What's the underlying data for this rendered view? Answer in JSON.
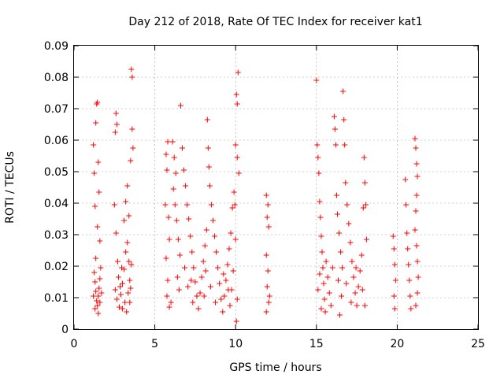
{
  "chart_data": {
    "type": "scatter",
    "title": "Day 212 of 2018, Rate Of TEC Index for receiver kat1",
    "xlabel": "GPS time / hours",
    "ylabel": "ROTI / TECUs",
    "xlim": [
      0,
      25
    ],
    "ylim": [
      0,
      0.09
    ],
    "xticks": [
      0,
      5,
      10,
      15,
      20,
      25
    ],
    "xtick_labels": [
      "0",
      "5",
      "10",
      "15",
      "20",
      "25"
    ],
    "yticks": [
      0,
      0.01,
      0.02,
      0.03,
      0.04,
      0.05,
      0.06,
      0.07,
      0.08,
      0.09
    ],
    "ytick_labels": [
      "0",
      "0.01",
      "0.02",
      "0.03",
      "0.04",
      "0.05",
      "0.06",
      "0.07",
      "0.08",
      "0.09"
    ],
    "grid": true,
    "marker": "+",
    "color": "#ff0000",
    "series": [
      {
        "name": "ROTI",
        "points": [
          [
            1.2,
            0.0585
          ],
          [
            1.25,
            0.0495
          ],
          [
            1.35,
            0.0655
          ],
          [
            1.4,
            0.0715
          ],
          [
            1.45,
            0.072
          ],
          [
            1.5,
            0.053
          ],
          [
            1.3,
            0.039
          ],
          [
            1.55,
            0.0435
          ],
          [
            1.45,
            0.0325
          ],
          [
            1.6,
            0.028
          ],
          [
            1.25,
            0.018
          ],
          [
            1.3,
            0.015
          ],
          [
            1.35,
            0.012
          ],
          [
            1.4,
            0.009
          ],
          [
            1.45,
            0.0075
          ],
          [
            1.5,
            0.0105
          ],
          [
            1.55,
            0.013
          ],
          [
            1.6,
            0.016
          ],
          [
            1.65,
            0.0195
          ],
          [
            1.3,
            0.0065
          ],
          [
            1.5,
            0.005
          ],
          [
            1.6,
            0.0085
          ],
          [
            1.7,
            0.0115
          ],
          [
            1.2,
            0.0105
          ],
          [
            1.35,
            0.0225
          ],
          [
            2.55,
            0.0625
          ],
          [
            2.6,
            0.0685
          ],
          [
            2.65,
            0.065
          ],
          [
            2.5,
            0.0395
          ],
          [
            2.6,
            0.0305
          ],
          [
            2.7,
            0.0215
          ],
          [
            2.75,
            0.0165
          ],
          [
            2.55,
            0.0125
          ],
          [
            2.65,
            0.0095
          ],
          [
            2.8,
            0.007
          ],
          [
            2.9,
            0.011
          ],
          [
            3.0,
            0.0145
          ],
          [
            3.1,
            0.019
          ],
          [
            3.2,
            0.0245
          ],
          [
            3.3,
            0.0275
          ],
          [
            3.1,
            0.0345
          ],
          [
            3.2,
            0.0405
          ],
          [
            3.3,
            0.0455
          ],
          [
            3.4,
            0.036
          ],
          [
            3.15,
            0.0085
          ],
          [
            3.25,
            0.0055
          ],
          [
            3.35,
            0.0115
          ],
          [
            3.45,
            0.0155
          ],
          [
            3.55,
            0.0205
          ],
          [
            3.6,
            0.0635
          ],
          [
            3.65,
            0.0575
          ],
          [
            3.55,
            0.0825
          ],
          [
            3.6,
            0.08
          ],
          [
            3.5,
            0.0535
          ],
          [
            3.4,
            0.0215
          ],
          [
            3.0,
            0.0065
          ],
          [
            2.85,
            0.0135
          ],
          [
            3.5,
            0.013
          ],
          [
            3.45,
            0.0085
          ],
          [
            2.95,
            0.0195
          ],
          [
            5.7,
            0.0555
          ],
          [
            5.75,
            0.0505
          ],
          [
            5.8,
            0.0595
          ],
          [
            5.65,
            0.0395
          ],
          [
            5.85,
            0.0355
          ],
          [
            5.9,
            0.0285
          ],
          [
            5.7,
            0.0225
          ],
          [
            5.8,
            0.0155
          ],
          [
            5.75,
            0.0105
          ],
          [
            5.9,
            0.007
          ],
          [
            6.1,
            0.0595
          ],
          [
            6.2,
            0.0545
          ],
          [
            6.3,
            0.0495
          ],
          [
            6.15,
            0.0445
          ],
          [
            6.25,
            0.0395
          ],
          [
            6.35,
            0.0345
          ],
          [
            6.45,
            0.0285
          ],
          [
            6.55,
            0.0235
          ],
          [
            6.6,
            0.071
          ],
          [
            6.7,
            0.0575
          ],
          [
            6.8,
            0.0505
          ],
          [
            6.9,
            0.0455
          ],
          [
            7.0,
            0.0395
          ],
          [
            7.1,
            0.035
          ],
          [
            7.2,
            0.0295
          ],
          [
            7.3,
            0.0245
          ],
          [
            7.4,
            0.0195
          ],
          [
            7.5,
            0.015
          ],
          [
            7.6,
            0.0105
          ],
          [
            7.7,
            0.0065
          ],
          [
            7.8,
            0.0115
          ],
          [
            7.9,
            0.0165
          ],
          [
            8.0,
            0.0215
          ],
          [
            8.1,
            0.0265
          ],
          [
            8.2,
            0.0315
          ],
          [
            8.25,
            0.0665
          ],
          [
            8.3,
            0.0575
          ],
          [
            8.35,
            0.0515
          ],
          [
            8.4,
            0.0455
          ],
          [
            8.5,
            0.0395
          ],
          [
            8.6,
            0.0345
          ],
          [
            8.7,
            0.0295
          ],
          [
            8.8,
            0.0245
          ],
          [
            8.9,
            0.0195
          ],
          [
            9.0,
            0.0145
          ],
          [
            9.1,
            0.0095
          ],
          [
            9.2,
            0.0055
          ],
          [
            9.3,
            0.0105
          ],
          [
            9.4,
            0.0155
          ],
          [
            9.5,
            0.0205
          ],
          [
            9.6,
            0.0255
          ],
          [
            9.7,
            0.0305
          ],
          [
            9.8,
            0.0385
          ],
          [
            9.9,
            0.0435
          ],
          [
            9.95,
            0.0395
          ],
          [
            10.0,
            0.0585
          ],
          [
            10.05,
            0.0745
          ],
          [
            10.1,
            0.0715
          ],
          [
            10.15,
            0.0815
          ],
          [
            10.1,
            0.0545
          ],
          [
            10.2,
            0.0495
          ],
          [
            10.0,
            0.0285
          ],
          [
            9.85,
            0.0185
          ],
          [
            9.75,
            0.0125
          ],
          [
            9.65,
            0.0075
          ],
          [
            10.05,
            0.0025
          ],
          [
            10.1,
            0.0095
          ],
          [
            6.5,
            0.0125
          ],
          [
            6.0,
            0.0085
          ],
          [
            6.4,
            0.0165
          ],
          [
            7.05,
            0.0135
          ],
          [
            7.35,
            0.0085
          ],
          [
            8.05,
            0.0105
          ],
          [
            8.45,
            0.0135
          ],
          [
            8.75,
            0.0085
          ],
          [
            9.25,
            0.0175
          ],
          [
            9.55,
            0.0125
          ],
          [
            6.85,
            0.0195
          ],
          [
            7.25,
            0.0155
          ],
          [
            8.15,
            0.0185
          ],
          [
            11.9,
            0.0425
          ],
          [
            12.0,
            0.0395
          ],
          [
            11.95,
            0.0355
          ],
          [
            12.05,
            0.0325
          ],
          [
            11.9,
            0.0235
          ],
          [
            12.0,
            0.0185
          ],
          [
            11.95,
            0.0135
          ],
          [
            12.05,
            0.0085
          ],
          [
            11.9,
            0.0055
          ],
          [
            12.1,
            0.0105
          ],
          [
            15.0,
            0.079
          ],
          [
            15.05,
            0.0585
          ],
          [
            15.1,
            0.0545
          ],
          [
            15.15,
            0.0495
          ],
          [
            15.2,
            0.0405
          ],
          [
            15.25,
            0.0355
          ],
          [
            15.3,
            0.0295
          ],
          [
            15.35,
            0.0245
          ],
          [
            15.4,
            0.0195
          ],
          [
            15.45,
            0.0145
          ],
          [
            15.5,
            0.0095
          ],
          [
            15.55,
            0.0055
          ],
          [
            15.1,
            0.0125
          ],
          [
            15.2,
            0.0175
          ],
          [
            15.3,
            0.0065
          ],
          [
            15.6,
            0.0215
          ],
          [
            15.7,
            0.0165
          ],
          [
            15.8,
            0.0115
          ],
          [
            15.9,
            0.0075
          ],
          [
            16.0,
            0.0195
          ],
          [
            16.1,
            0.0675
          ],
          [
            16.15,
            0.0635
          ],
          [
            16.2,
            0.0585
          ],
          [
            16.25,
            0.0425
          ],
          [
            16.3,
            0.0365
          ],
          [
            16.4,
            0.0305
          ],
          [
            16.5,
            0.0245
          ],
          [
            16.6,
            0.0195
          ],
          [
            16.65,
            0.0755
          ],
          [
            16.7,
            0.0665
          ],
          [
            16.75,
            0.0585
          ],
          [
            16.8,
            0.0465
          ],
          [
            16.9,
            0.0395
          ],
          [
            17.0,
            0.0335
          ],
          [
            17.1,
            0.0275
          ],
          [
            17.2,
            0.0215
          ],
          [
            17.3,
            0.0165
          ],
          [
            17.4,
            0.0115
          ],
          [
            17.5,
            0.0075
          ],
          [
            16.45,
            0.0045
          ],
          [
            17.6,
            0.0135
          ],
          [
            17.7,
            0.0185
          ],
          [
            17.8,
            0.0235
          ],
          [
            17.9,
            0.0385
          ],
          [
            17.95,
            0.0545
          ],
          [
            18.0,
            0.0465
          ],
          [
            18.05,
            0.0395
          ],
          [
            18.1,
            0.0285
          ],
          [
            17.85,
            0.0125
          ],
          [
            18.0,
            0.0075
          ],
          [
            16.55,
            0.0105
          ],
          [
            16.85,
            0.0145
          ],
          [
            17.15,
            0.0085
          ],
          [
            17.45,
            0.0195
          ],
          [
            16.35,
            0.0155
          ],
          [
            19.75,
            0.0295
          ],
          [
            19.8,
            0.0255
          ],
          [
            19.85,
            0.0205
          ],
          [
            19.9,
            0.0155
          ],
          [
            19.8,
            0.0105
          ],
          [
            19.85,
            0.0065
          ],
          [
            20.5,
            0.0475
          ],
          [
            20.55,
            0.0395
          ],
          [
            20.6,
            0.0305
          ],
          [
            20.65,
            0.0255
          ],
          [
            20.7,
            0.0205
          ],
          [
            20.75,
            0.0155
          ],
          [
            20.8,
            0.0105
          ],
          [
            20.85,
            0.0065
          ],
          [
            21.1,
            0.0605
          ],
          [
            21.15,
            0.0575
          ],
          [
            21.2,
            0.0525
          ],
          [
            21.25,
            0.0485
          ],
          [
            21.2,
            0.0425
          ],
          [
            21.15,
            0.0375
          ],
          [
            21.1,
            0.0315
          ],
          [
            21.2,
            0.0265
          ],
          [
            21.25,
            0.0215
          ],
          [
            21.3,
            0.0165
          ],
          [
            21.25,
            0.0115
          ],
          [
            21.15,
            0.0075
          ]
        ]
      }
    ]
  }
}
